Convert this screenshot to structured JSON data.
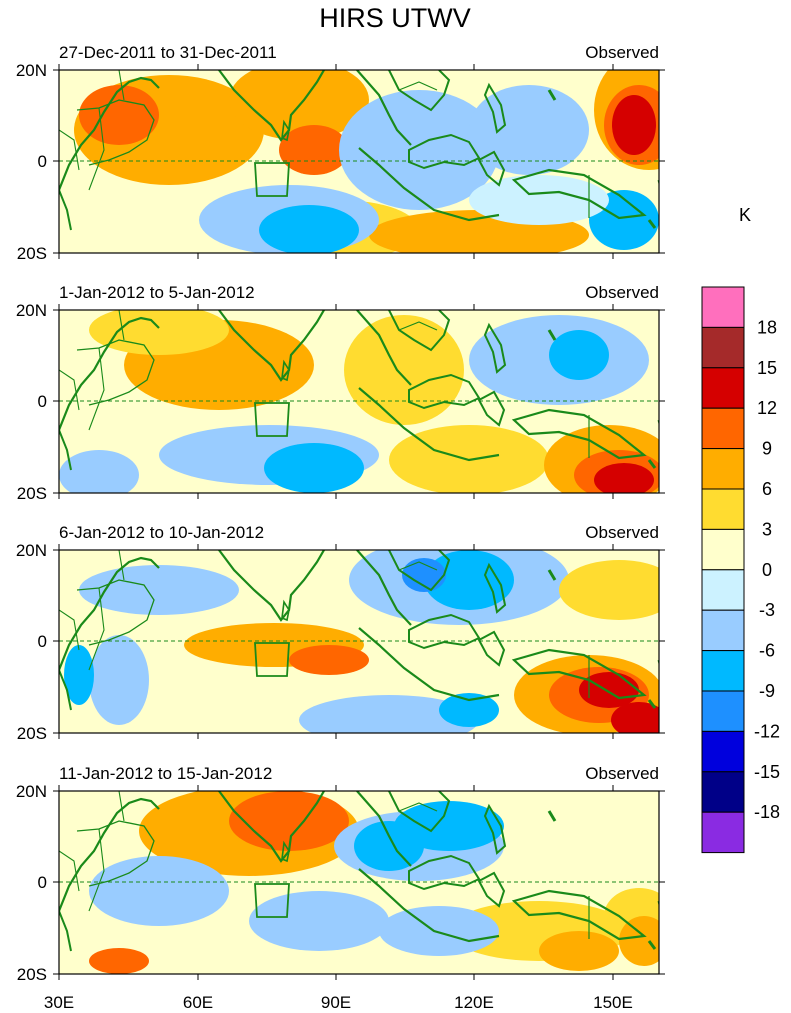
{
  "title": "HIRS UTWV",
  "unit_label": "K",
  "panels": [
    {
      "period": "27-Dec-2011 to 31-Dec-2011",
      "tag": "Observed"
    },
    {
      "period": "1-Jan-2012 to 5-Jan-2012",
      "tag": "Observed"
    },
    {
      "period": "6-Jan-2012 to 10-Jan-2012",
      "tag": "Observed"
    },
    {
      "period": "11-Jan-2012 to 15-Jan-2012",
      "tag": "Observed"
    }
  ],
  "lat_labels": [
    "20N",
    "0",
    "20S"
  ],
  "lon_labels": [
    "30E",
    "60E",
    "90E",
    "120E",
    "150E"
  ],
  "colorbar": {
    "labels": [
      "18",
      "15",
      "12",
      "9",
      "6",
      "3",
      "0",
      "-3",
      "-6",
      "-9",
      "-12",
      "-15",
      "-18"
    ],
    "colors": [
      "#ff6fbd",
      "#a52a2a",
      "#d50000",
      "#ff6600",
      "#ffad00",
      "#ffdc30",
      "#ffffcc",
      "#ccf2ff",
      "#99ccff",
      "#00b9ff",
      "#1e90ff",
      "#0000dd",
      "#000088",
      "#8a2be2"
    ]
  },
  "palette": {
    "red": "#d50000",
    "orange_dark": "#ff6600",
    "orange": "#ffad00",
    "yellow": "#ffdc30",
    "cream": "#ffffcc",
    "ice": "#ccf2ff",
    "light_blue": "#99ccff",
    "cyan": "#00b9ff",
    "blue": "#1e90ff",
    "navy": "#0000dd",
    "coast": "#1a8a1a"
  }
}
